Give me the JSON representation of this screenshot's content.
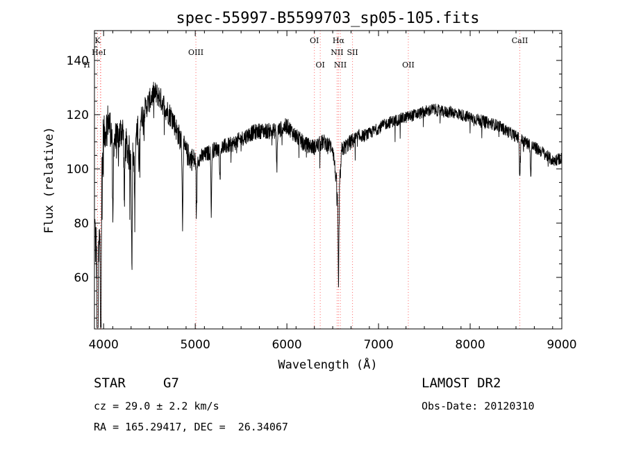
{
  "title": "spec-55997-B5599703_sp05-105.fits",
  "xlabel": "Wavelength (Å)",
  "ylabel": "Flux (relative)",
  "info": {
    "object_type": "STAR",
    "subclass": "G7",
    "cz": "cz = 29.0 ± 2.2 km/s",
    "coords": "RA = 165.29417, DEC =  26.34067",
    "survey": "LAMOST DR2",
    "obs_date": "Obs-Date: 20120310"
  },
  "chart_data": {
    "type": "line",
    "title": "spec-55997-B5599703_sp05-105.fits",
    "xlabel": "Wavelength (Å)",
    "ylabel": "Flux (relative)",
    "xlim": [
      3900,
      9000
    ],
    "ylim": [
      41,
      151
    ],
    "x_ticks": [
      4000,
      5000,
      6000,
      7000,
      8000,
      9000
    ],
    "y_ticks": [
      60,
      80,
      100,
      120,
      140
    ],
    "grid": false,
    "line_color": "#000000",
    "marker_color": "#ff6666",
    "line_markers": [
      {
        "label": "K",
        "x": 3934
      },
      {
        "label": "HeI",
        "x": 3965
      },
      {
        "label": "H",
        "x": 3969
      },
      {
        "label": "OIII",
        "x": 5007
      },
      {
        "label": "OI",
        "x": 6300
      },
      {
        "label": "OI",
        "x": 6364
      },
      {
        "label": "Hα",
        "x": 6563
      },
      {
        "label": "NII",
        "x": 6548
      },
      {
        "label": "NII",
        "x": 6583
      },
      {
        "label": "SII",
        "x": 6716
      },
      {
        "label": "OII",
        "x": 7325
      },
      {
        "label": "CaII",
        "x": 8542
      }
    ],
    "series": [
      {
        "x": [
          3900,
          3940,
          3970,
          4000,
          4050,
          4100,
          4150,
          4200,
          4250,
          4300,
          4350,
          4400,
          4450,
          4500,
          4550,
          4600,
          4650,
          4700,
          4750,
          4800,
          4850,
          4900,
          4950,
          5000,
          5100,
          5200,
          5300,
          5400,
          5500,
          5600,
          5700,
          5800,
          5900,
          6000,
          6100,
          6200,
          6300,
          6400,
          6500,
          6563,
          6600,
          6700,
          6800,
          6900,
          7000,
          7100,
          7200,
          7300,
          7400,
          7500,
          7600,
          7700,
          7800,
          7900,
          8000,
          8100,
          8200,
          8300,
          8400,
          8500,
          8600,
          8700,
          8800,
          8900,
          9000
        ],
        "y": [
          80,
          60,
          85,
          112,
          118,
          112,
          110,
          115,
          108,
          104,
          112,
          118,
          122,
          125,
          128,
          127,
          124,
          121,
          119,
          114,
          110,
          106,
          104,
          103,
          105,
          107,
          108,
          109,
          111,
          113,
          114,
          114,
          114,
          116,
          112,
          109,
          108,
          110,
          108,
          88,
          107,
          110,
          112,
          113,
          115,
          117,
          118,
          119,
          120,
          121,
          122,
          121,
          121,
          120,
          119,
          118,
          117,
          116,
          114,
          112,
          110,
          108,
          106,
          103,
          104
        ]
      }
    ]
  }
}
